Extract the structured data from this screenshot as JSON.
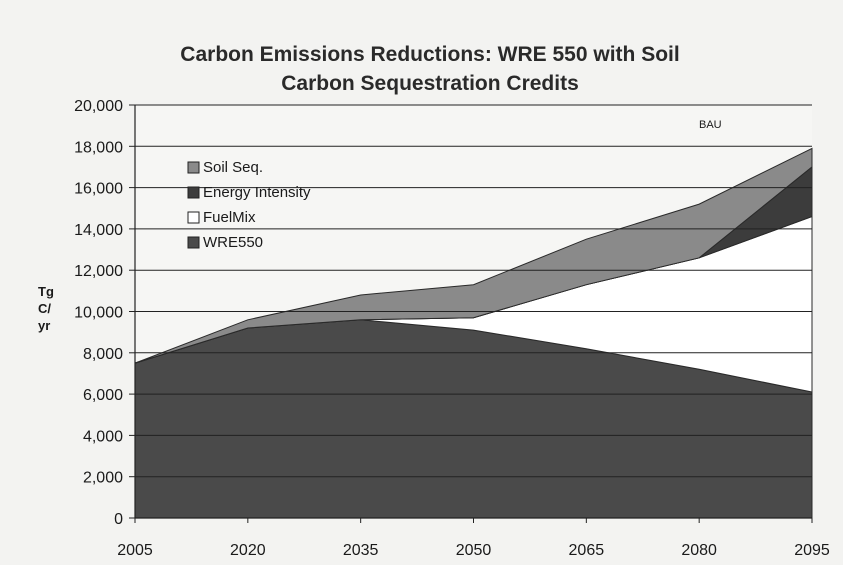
{
  "chart_data": {
    "type": "area",
    "title": "Carbon Emissions Reductions: WRE 550 with Soil Carbon Sequestration Credits",
    "title_line1": "Carbon Emissions Reductions: WRE 550 with Soil",
    "title_line2": "Carbon Sequestration Credits",
    "ylabel_lines": [
      "Tg",
      "C/",
      "yr"
    ],
    "xlabel": "",
    "x": [
      2005,
      2020,
      2035,
      2050,
      2065,
      2080,
      2095
    ],
    "ylim": [
      0,
      20000
    ],
    "yticks": [
      0,
      2000,
      4000,
      6000,
      8000,
      10000,
      12000,
      14000,
      16000,
      18000,
      20000
    ],
    "ytick_labels": [
      "0",
      "2,000",
      "4,000",
      "6,000",
      "8,000",
      "10,000",
      "12,000",
      "14,000",
      "16,000",
      "18,000",
      "20,000"
    ],
    "grid": "horizontal",
    "legend_position": "left",
    "annotation": "BAU",
    "series": [
      {
        "name": "WRE550",
        "color": "#4a4a4a",
        "values": [
          7500,
          9200,
          9600,
          9100,
          8200,
          7200,
          6100
        ]
      },
      {
        "name": "FuelMix",
        "color": "#ffffff",
        "values": [
          0,
          0,
          0,
          600,
          3100,
          5400,
          8500
        ]
      },
      {
        "name": "Energy Intensity",
        "color": "#3c3c3c",
        "values": [
          0,
          0,
          0,
          0,
          0,
          0,
          2400
        ]
      },
      {
        "name": "Soil Seq.",
        "color": "#8a8a8a",
        "values": [
          0,
          400,
          1200,
          1600,
          2200,
          2600,
          900
        ]
      }
    ],
    "legend_order": [
      "Soil Seq.",
      "Energy Intensity",
      "FuelMix",
      "WRE550"
    ]
  }
}
